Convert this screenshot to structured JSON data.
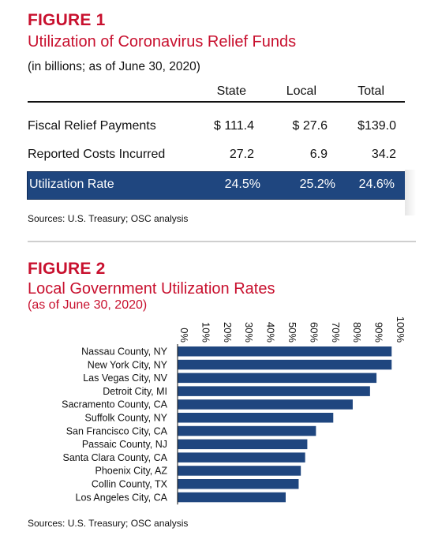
{
  "figure1": {
    "label": "FIGURE 1",
    "title": "Utilization of Coronavirus Relief Funds",
    "subtitle": "(in billions; as of June 30, 2020)",
    "columns": [
      "State",
      "Local",
      "Total"
    ],
    "rows": [
      {
        "label": "Fiscal Relief Payments",
        "values": [
          "$ 111.4",
          "$ 27.6",
          "$139.0"
        ]
      },
      {
        "label": "Reported Costs Incurred",
        "values": [
          "27.2",
          "6.9",
          "34.2"
        ]
      },
      {
        "label": "Utilization Rate",
        "values": [
          "24.5%",
          "25.2%",
          "24.6%"
        ]
      }
    ],
    "source": "Sources: U.S. Treasury; OSC analysis",
    "colors": {
      "title": "#c8102e",
      "highlight": "#1f467f"
    }
  },
  "figure2": {
    "label": "FIGURE 2",
    "title": "Local Government Utilization Rates",
    "subtitle": "(as of June 30, 2020)",
    "source": "Sources: U.S. Treasury; OSC analysis"
  },
  "chart_data": {
    "type": "bar",
    "orientation": "horizontal",
    "categories": [
      "Nassau County, NY",
      "New York City, NY",
      "Las Vegas City, NV",
      "Detroit City, MI",
      "Sacramento County, CA",
      "Suffolk County, NY",
      "San Francisco City, CA",
      "Passaic County, NJ",
      "Santa Clara County, CA",
      "Phoenix City, AZ",
      "Collin County, TX",
      "Los Angeles City, CA"
    ],
    "values": [
      99,
      99,
      92,
      89,
      81,
      72,
      64,
      60,
      59,
      57,
      56,
      50
    ],
    "xlim": [
      0,
      100
    ],
    "xticks": [
      "0%",
      "10%",
      "20%",
      "30%",
      "40%",
      "50%",
      "60%",
      "70%",
      "80%",
      "90%",
      "100%"
    ],
    "xaxis_position": "top",
    "grid": false,
    "color": "#1f467f"
  }
}
